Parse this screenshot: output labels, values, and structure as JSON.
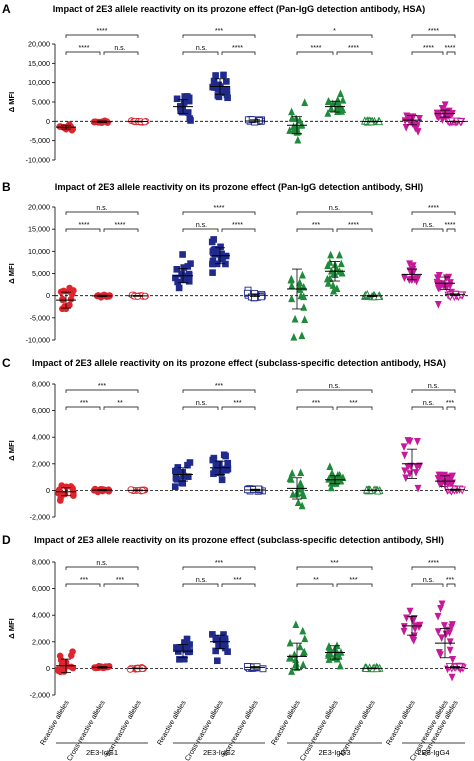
{
  "figure": {
    "groups": [
      "2E3-IgG1",
      "2E3-IgG2",
      "2E3-IgG3",
      "2E3-IgG4"
    ],
    "categories": [
      "Reactive alleles",
      "Cross-reactive alleles",
      "Non-reactive alleles"
    ],
    "group_colors": [
      "#e0242e",
      "#1f2a8c",
      "#1e8a3a",
      "#c8189a"
    ],
    "ylabel": "Δ MFI"
  },
  "chart_data": [
    {
      "letter": "A",
      "type": "scatter",
      "title": "Impact of 2E3 allele reactivity on its prozone effect (Pan-IgG detection antibody, HSA)",
      "ylabel": "Δ MFI",
      "ylim": [
        -10000,
        20000
      ],
      "yticks": [
        -10000,
        -5000,
        0,
        5000,
        10000,
        15000,
        20000
      ],
      "ytick_labels": [
        "-10,000",
        "-5,000",
        "0",
        "5,000",
        "10,000",
        "15,000",
        "20,000"
      ],
      "series": [
        {
          "group": "2E3-IgG1",
          "reactive": {
            "mean": -1500,
            "sd": 500,
            "n": 14
          },
          "cross": {
            "mean": -100,
            "sd": 200,
            "n": 16
          },
          "non": {
            "mean": -50,
            "sd": 100,
            "n": 14
          }
        },
        {
          "group": "2E3-IgG2",
          "reactive": {
            "mean": 3800,
            "sd": 1800,
            "n": 14
          },
          "cross": {
            "mean": 9000,
            "sd": 2000,
            "n": 18
          },
          "non": {
            "mean": 100,
            "sd": 300,
            "n": 14
          }
        },
        {
          "group": "2E3-IgG3",
          "reactive": {
            "mean": -1000,
            "sd": 2200,
            "n": 16
          },
          "cross": {
            "mean": 3800,
            "sd": 1400,
            "n": 18
          },
          "non": {
            "mean": -50,
            "sd": 100,
            "n": 14
          }
        },
        {
          "group": "2E3-IgG4",
          "reactive": {
            "mean": 300,
            "sd": 1200,
            "n": 14
          },
          "cross": {
            "mean": 2000,
            "sd": 900,
            "n": 18
          },
          "non": {
            "mean": -50,
            "sd": 100,
            "n": 14
          }
        }
      ],
      "significance": [
        {
          "g": 0,
          "rc": "****",
          "cn": "n.s.",
          "rn": "****"
        },
        {
          "g": 1,
          "rc": "n.s.",
          "cn": "****",
          "rn": "***"
        },
        {
          "g": 2,
          "rc": "****",
          "cn": "****",
          "rn": "*"
        },
        {
          "g": 3,
          "rc": "****",
          "cn": "****",
          "rn": "****"
        }
      ]
    },
    {
      "letter": "B",
      "type": "scatter",
      "title": "Impact of 2E3 allele reactivity on its prozone effect (Pan-IgG detection antibody, SHI)",
      "ylabel": "Δ MFI",
      "ylim": [
        -10000,
        20000
      ],
      "yticks": [
        -10000,
        -5000,
        0,
        5000,
        10000,
        15000,
        20000
      ],
      "ytick_labels": [
        "-10,000",
        "-5,000",
        "0",
        "5,000",
        "10,000",
        "15,000",
        "20,000"
      ],
      "series": [
        {
          "group": "2E3-IgG1",
          "reactive": {
            "mean": -1000,
            "sd": 1800,
            "n": 14
          },
          "cross": {
            "mean": -50,
            "sd": 150,
            "n": 16
          },
          "non": {
            "mean": -50,
            "sd": 100,
            "n": 14
          }
        },
        {
          "group": "2E3-IgG2",
          "reactive": {
            "mean": 4500,
            "sd": 1600,
            "n": 14
          },
          "cross": {
            "mean": 9000,
            "sd": 1800,
            "n": 18
          },
          "non": {
            "mean": 100,
            "sd": 300,
            "n": 14
          }
        },
        {
          "group": "2E3-IgG3",
          "reactive": {
            "mean": 1500,
            "sd": 4500,
            "n": 16
          },
          "cross": {
            "mean": 5500,
            "sd": 2200,
            "n": 18
          },
          "non": {
            "mean": -50,
            "sd": 150,
            "n": 14
          }
        },
        {
          "group": "2E3-IgG4",
          "reactive": {
            "mean": 4800,
            "sd": 1200,
            "n": 14
          },
          "cross": {
            "mean": 2800,
            "sd": 1400,
            "n": 18
          },
          "non": {
            "mean": 200,
            "sd": 200,
            "n": 14
          }
        }
      ],
      "significance": [
        {
          "g": 0,
          "rc": "****",
          "cn": "****",
          "rn": "n.s."
        },
        {
          "g": 1,
          "rc": "n.s.",
          "cn": "****",
          "rn": "****"
        },
        {
          "g": 2,
          "rc": "***",
          "cn": "****",
          "rn": "n.s."
        },
        {
          "g": 3,
          "rc": "n.s.",
          "cn": "****",
          "rn": "****"
        }
      ]
    },
    {
      "letter": "C",
      "type": "scatter",
      "title": "Impact of 2E3 allele reactivity on its prozone effect (subclass-specific detection antibody, HSA)",
      "ylabel": "Δ MFI",
      "ylim": [
        -2000,
        8000
      ],
      "yticks": [
        -2000,
        0,
        2000,
        4000,
        6000,
        8000
      ],
      "ytick_labels": [
        "-2,000",
        "0",
        "2,000",
        "4,000",
        "6,000",
        "8,000"
      ],
      "series": [
        {
          "group": "2E3-IgG1",
          "reactive": {
            "mean": -100,
            "sd": 300,
            "n": 14
          },
          "cross": {
            "mean": 20,
            "sd": 40,
            "n": 16
          },
          "non": {
            "mean": 0,
            "sd": 30,
            "n": 14
          }
        },
        {
          "group": "2E3-IgG2",
          "reactive": {
            "mean": 1200,
            "sd": 500,
            "n": 14
          },
          "cross": {
            "mean": 1700,
            "sd": 500,
            "n": 18
          },
          "non": {
            "mean": 30,
            "sd": 60,
            "n": 14
          }
        },
        {
          "group": "2E3-IgG3",
          "reactive": {
            "mean": 150,
            "sd": 800,
            "n": 16
          },
          "cross": {
            "mean": 800,
            "sd": 300,
            "n": 18
          },
          "non": {
            "mean": 0,
            "sd": 30,
            "n": 14
          }
        },
        {
          "group": "2E3-IgG4",
          "reactive": {
            "mean": 2000,
            "sd": 1100,
            "n": 14
          },
          "cross": {
            "mean": 700,
            "sd": 400,
            "n": 18
          },
          "non": {
            "mean": 50,
            "sd": 50,
            "n": 14
          }
        }
      ],
      "significance": [
        {
          "g": 0,
          "rc": "***",
          "cn": "**",
          "rn": "***"
        },
        {
          "g": 1,
          "rc": "n.s.",
          "cn": "***",
          "rn": "***"
        },
        {
          "g": 2,
          "rc": "***",
          "cn": "***",
          "rn": "n.s."
        },
        {
          "g": 3,
          "rc": "n.s.",
          "cn": "***",
          "rn": "n.s."
        }
      ]
    },
    {
      "letter": "D",
      "type": "scatter",
      "title": "Impact of 2E3 allele reactivity on its prozone effect (subclass-specific detection antibody, SHI)",
      "ylabel": "Δ MFI",
      "ylim": [
        -2000,
        8000
      ],
      "yticks": [
        -2000,
        0,
        2000,
        4000,
        6000,
        8000
      ],
      "ytick_labels": [
        "-2,000",
        "0",
        "2,000",
        "4,000",
        "6,000",
        "8,000"
      ],
      "series": [
        {
          "group": "2E3-IgG1",
          "reactive": {
            "mean": 200,
            "sd": 500,
            "n": 14
          },
          "cross": {
            "mean": 80,
            "sd": 60,
            "n": 16
          },
          "non": {
            "mean": 0,
            "sd": 30,
            "n": 14
          }
        },
        {
          "group": "2E3-IgG2",
          "reactive": {
            "mean": 1300,
            "sd": 500,
            "n": 14
          },
          "cross": {
            "mean": 2000,
            "sd": 500,
            "n": 18
          },
          "non": {
            "mean": 80,
            "sd": 60,
            "n": 14
          }
        },
        {
          "group": "2E3-IgG3",
          "reactive": {
            "mean": 900,
            "sd": 1000,
            "n": 16
          },
          "cross": {
            "mean": 1200,
            "sd": 500,
            "n": 18
          },
          "non": {
            "mean": 0,
            "sd": 30,
            "n": 14
          }
        },
        {
          "group": "2E3-IgG4",
          "reactive": {
            "mean": 3200,
            "sd": 700,
            "n": 14
          },
          "cross": {
            "mean": 1900,
            "sd": 1100,
            "n": 18
          },
          "non": {
            "mean": 80,
            "sd": 60,
            "n": 14
          }
        }
      ],
      "significance": [
        {
          "g": 0,
          "rc": "***",
          "cn": "***",
          "rn": "n.s."
        },
        {
          "g": 1,
          "rc": "n.s.",
          "cn": "***",
          "rn": "***"
        },
        {
          "g": 2,
          "rc": "**",
          "cn": "***",
          "rn": "***"
        },
        {
          "g": 3,
          "rc": "n.s.",
          "cn": "***",
          "rn": "****"
        }
      ]
    }
  ]
}
